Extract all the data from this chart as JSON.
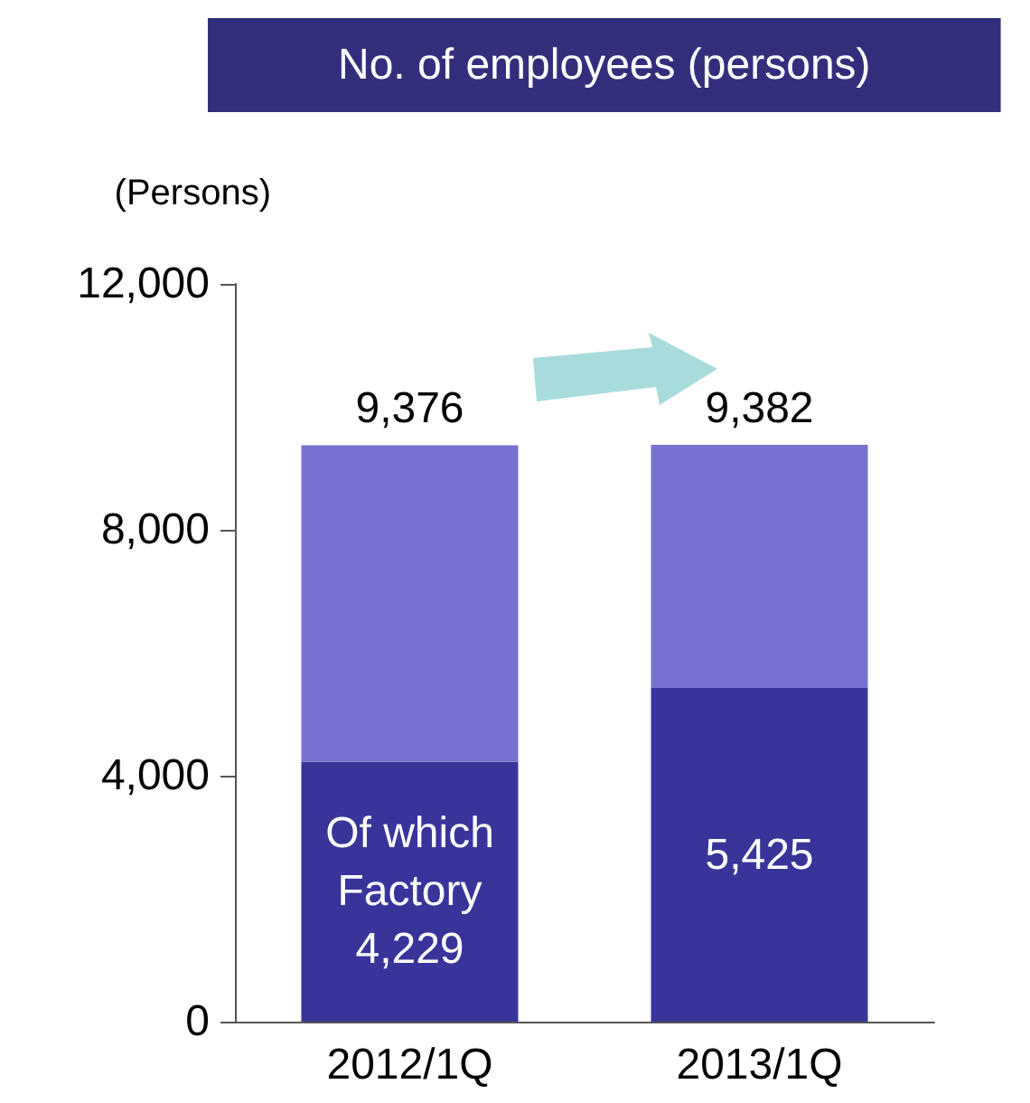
{
  "chart_data": {
    "type": "bar",
    "title": "No. of employees (persons)",
    "ylabel": "(Persons)",
    "stacked": true,
    "categories": [
      "2012/1Q",
      "2013/1Q"
    ],
    "series": [
      {
        "color": "#39349a",
        "values": [
          4229,
          5425
        ],
        "value_labels": [
          "Of which\nFactory\n4,229",
          "5,425"
        ]
      },
      {
        "color": "#7772d0",
        "values": [
          5147,
          3957
        ]
      }
    ],
    "totals": [
      "9,376",
      "9,382"
    ],
    "ylim": [
      0,
      12000
    ],
    "yticks": [
      {
        "value": 0,
        "label": "0"
      },
      {
        "value": 4000,
        "label": "4,000"
      },
      {
        "value": 8000,
        "label": "8,000"
      },
      {
        "value": 12000,
        "label": "12,000"
      }
    ],
    "grid": false
  }
}
